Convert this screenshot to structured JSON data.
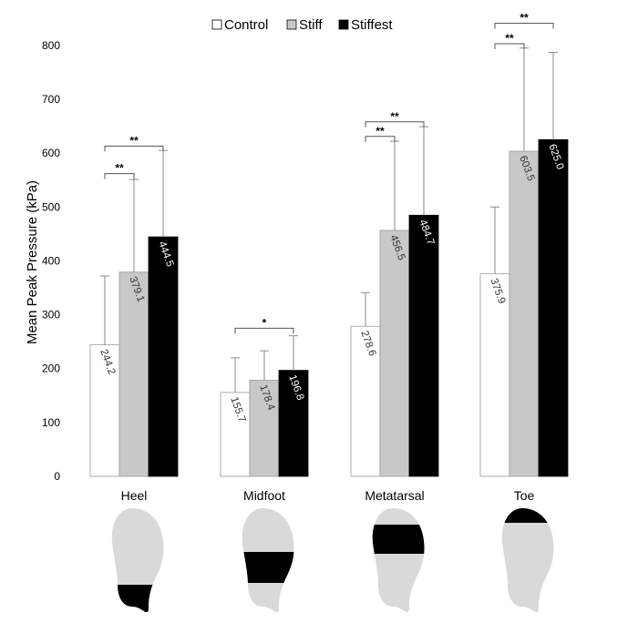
{
  "chart_data": {
    "type": "bar",
    "ylabel": "Mean Peak Pressure (kPa)",
    "ylim": [
      0,
      800
    ],
    "yticks": [
      "0",
      "100",
      "200",
      "300",
      "400",
      "500",
      "600",
      "700",
      "800"
    ],
    "categories": [
      "Heel",
      "Midfoot",
      "Metatarsal",
      "Toe"
    ],
    "legend_position": "top-center",
    "grid": false,
    "series": [
      {
        "name": "Control",
        "color": "#ffffff",
        "values": [
          244.2,
          155.7,
          278.6,
          375.9
        ],
        "labels": [
          "244.2",
          "155.7",
          "278.6",
          "375.9"
        ],
        "error_upper": [
          372,
          220,
          341,
          500
        ]
      },
      {
        "name": "Stiff",
        "color": "#c8c8c8",
        "values": [
          379.1,
          178.4,
          456.5,
          603.5
        ],
        "labels": [
          "379.1",
          "178.4",
          "456.5",
          "603.5"
        ],
        "error_upper": [
          551,
          233,
          622,
          795
        ]
      },
      {
        "name": "Stiffest",
        "color": "#000000",
        "values": [
          444.5,
          196.8,
          484.7,
          625.0
        ],
        "labels": [
          "444.5",
          "196.8",
          "484.7",
          "625.0"
        ],
        "error_upper": [
          605,
          261,
          649,
          787
        ]
      }
    ],
    "significance": [
      {
        "category": 0,
        "from": 0,
        "to": 1,
        "label": "**",
        "y": 562
      },
      {
        "category": 0,
        "from": 0,
        "to": 2,
        "label": "**",
        "y": 613
      },
      {
        "category": 1,
        "from": 0,
        "to": 2,
        "label": "*",
        "y": 275
      },
      {
        "category": 2,
        "from": 0,
        "to": 1,
        "label": "**",
        "y": 631
      },
      {
        "category": 2,
        "from": 0,
        "to": 2,
        "label": "**",
        "y": 658
      },
      {
        "category": 3,
        "from": 0,
        "to": 1,
        "label": "**",
        "y": 803
      },
      {
        "category": 3,
        "from": 0,
        "to": 2,
        "label": "**",
        "y": 841
      }
    ],
    "foot_regions": [
      "heel",
      "midfoot",
      "metatarsal",
      "toe"
    ]
  }
}
